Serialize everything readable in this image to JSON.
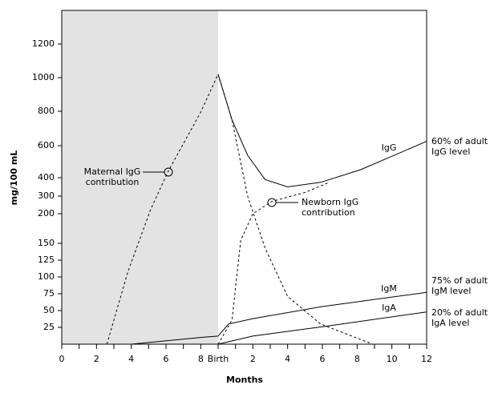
{
  "chart_data": {
    "type": "line",
    "y_label": "mg/100 mL",
    "x_label": "Months",
    "xlim": [
      0,
      21
    ],
    "ylim": [
      0,
      1400
    ],
    "xticks": [
      0,
      2,
      4,
      6,
      8,
      {
        "value": 9,
        "label": "Birth"
      },
      {
        "value": 11,
        "label": "2"
      },
      {
        "value": 13,
        "label": "4"
      },
      {
        "value": 15,
        "label": "6"
      },
      {
        "value": 17,
        "label": "8"
      },
      {
        "value": 19,
        "label": "10"
      },
      {
        "value": 21,
        "label": "12"
      }
    ],
    "minor_xticks": [
      1,
      3,
      5,
      7,
      10,
      12,
      14,
      16,
      18,
      20
    ],
    "yticks": [
      25,
      50,
      75,
      100,
      125,
      150,
      200,
      300,
      400,
      600,
      800,
      1000,
      1200
    ],
    "shaded_xrange": [
      0,
      9
    ],
    "shade_color": "#e3e3e3",
    "series": [
      {
        "name": "Maternal IgG",
        "dashed": true,
        "color": "#000",
        "x": [
          2.6,
          3.8,
          5.1,
          6.1,
          8,
          9,
          9.8,
          10.7,
          11.7,
          13,
          14.9,
          17.9
        ],
        "values": [
          0,
          107,
          220,
          435,
          795,
          1020,
          750,
          300,
          143,
          71,
          30,
          0
        ]
      },
      {
        "name": "Newborn IgG",
        "dashed": true,
        "color": "#000",
        "x": [
          9,
          9.8,
          10.3,
          11,
          12.1,
          14,
          15.4
        ],
        "values": [
          0,
          36,
          155,
          200,
          270,
          320,
          375
        ]
      },
      {
        "name": "IgG",
        "dashed": false,
        "color": "#000",
        "x": [
          9,
          9.8,
          10.7,
          11.7,
          13,
          14.9,
          17.2,
          21
        ],
        "values": [
          1020,
          750,
          540,
          390,
          350,
          375,
          450,
          625
        ]
      },
      {
        "name": "IgM",
        "dashed": false,
        "color": "#000",
        "x": [
          4,
          8,
          9,
          9.6,
          11,
          15,
          21
        ],
        "values": [
          0,
          10,
          12,
          30,
          38,
          56,
          77
        ]
      },
      {
        "name": "IgA",
        "dashed": false,
        "color": "#000",
        "x": [
          9,
          11,
          15,
          21
        ],
        "values": [
          0,
          12,
          26,
          48
        ]
      }
    ],
    "annotations": [
      "Maternal IgG\ncontribution",
      "Newborn IgG\ncontribution",
      "60% of adult\nIgG level",
      "75% of adult\nIgM level",
      "20% of adult\nIgA level"
    ]
  }
}
